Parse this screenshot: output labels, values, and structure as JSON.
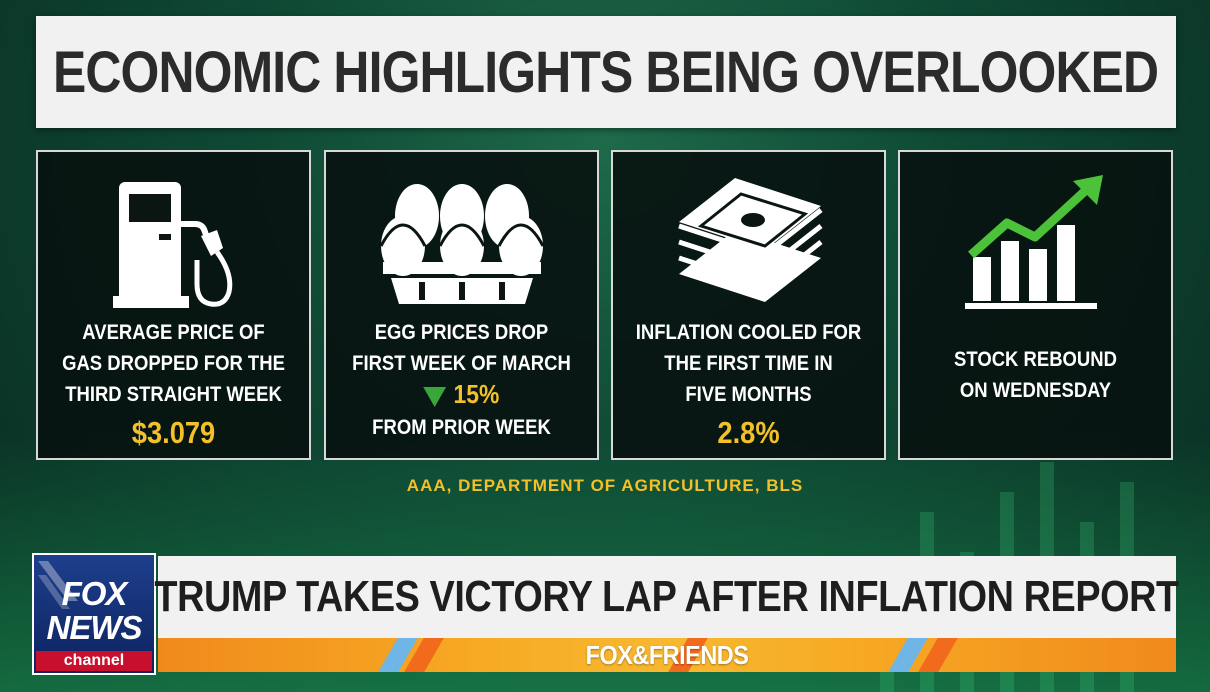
{
  "title": "ECONOMIC HIGHLIGHTS BEING OVERLOOKED",
  "panels": [
    {
      "icon": "gas-pump-icon",
      "lines": [
        "AVERAGE PRICE OF",
        "GAS DROPPED FOR THE",
        "THIRD STRAIGHT WEEK"
      ],
      "value": "$3.079"
    },
    {
      "icon": "eggs-carton-icon",
      "lines": [
        "EGG PRICES DROP",
        "FIRST WEEK OF MARCH"
      ],
      "change": "15%",
      "after": "FROM PRIOR WEEK"
    },
    {
      "icon": "money-stack-icon",
      "lines": [
        "INFLATION COOLED FOR",
        "THE FIRST TIME IN",
        "FIVE MONTHS"
      ],
      "value": "2.8%"
    },
    {
      "icon": "stock-chart-up-icon",
      "lines": [
        "STOCK REBOUND",
        "ON WEDNESDAY"
      ]
    }
  ],
  "source": "AAA, DEPARTMENT OF AGRICULTURE, BLS",
  "logo": {
    "line1": "FOX",
    "line2": "NEWS",
    "line3": "channel"
  },
  "headline": "TRUMP TAKES VICTORY LAP AFTER INFLATION REPORT",
  "show": "FOX&FRIENDS",
  "colors": {
    "accent": "#f3c02a",
    "arrow_green": "#3aa63a",
    "panel_bg": "#08120f",
    "banner": "#f1f1f1"
  }
}
